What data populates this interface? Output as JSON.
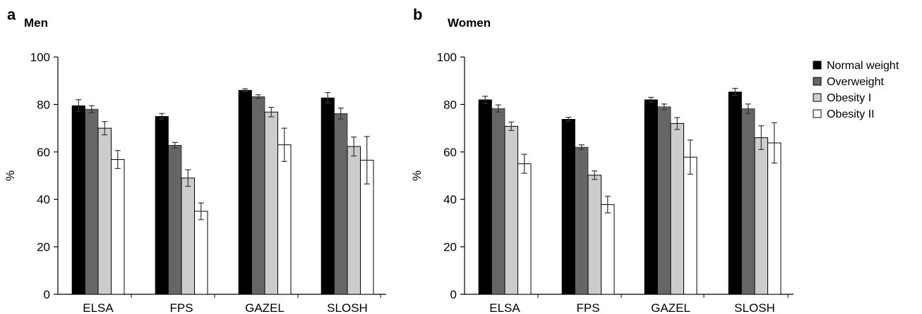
{
  "chart_data": [
    {
      "type": "bar",
      "panel_letter": "a",
      "title": "Men",
      "xlabel": "",
      "ylabel": "%",
      "ylim": [
        0,
        100
      ],
      "yticks": [
        0,
        20,
        40,
        60,
        80,
        100
      ],
      "categories": [
        "ELSA",
        "FPS",
        "GAZEL",
        "SLOSH"
      ],
      "series": [
        {
          "name": "Normal weight",
          "color": "#000000",
          "values": [
            79.5,
            75,
            86,
            82.8
          ],
          "errors": [
            2.5,
            1.2,
            0.6,
            2.2
          ]
        },
        {
          "name": "Overweight",
          "color": "#666666",
          "values": [
            78,
            62.8,
            83.3,
            76.2
          ],
          "errors": [
            1.5,
            1.2,
            0.8,
            2.3
          ]
        },
        {
          "name": "Obesity I",
          "color": "#cccccc",
          "values": [
            70,
            49,
            76.8,
            62.3
          ],
          "errors": [
            2.8,
            3.5,
            2,
            4
          ]
        },
        {
          "name": "Obesity II",
          "color": "#ffffff",
          "values": [
            56.8,
            35,
            63,
            56.5
          ],
          "errors": [
            3.8,
            3.5,
            7,
            10
          ]
        }
      ]
    },
    {
      "type": "bar",
      "panel_letter": "b",
      "title": "Women",
      "xlabel": "",
      "ylabel": "%",
      "ylim": [
        0,
        100
      ],
      "yticks": [
        0,
        20,
        40,
        60,
        80,
        100
      ],
      "categories": [
        "ELSA",
        "FPS",
        "GAZEL",
        "SLOSH"
      ],
      "series": [
        {
          "name": "Normal weight",
          "color": "#000000",
          "values": [
            82,
            73.8,
            82,
            85.3
          ],
          "errors": [
            1.5,
            0.8,
            1,
            1.5
          ]
        },
        {
          "name": "Overweight",
          "color": "#666666",
          "values": [
            78.3,
            62,
            79,
            78.2
          ],
          "errors": [
            1.5,
            1,
            1.2,
            2
          ]
        },
        {
          "name": "Obesity I",
          "color": "#cccccc",
          "values": [
            70.8,
            50.2,
            72,
            66
          ],
          "errors": [
            1.8,
            1.8,
            2.5,
            5
          ]
        },
        {
          "name": "Obesity II",
          "color": "#ffffff",
          "values": [
            55,
            37.8,
            57.8,
            63.8
          ],
          "errors": [
            4,
            3.5,
            7.2,
            8.5
          ]
        }
      ]
    }
  ],
  "legend": {
    "position": "right",
    "items": [
      {
        "label": "Normal weight",
        "color": "#000000"
      },
      {
        "label": "Overweight",
        "color": "#666666"
      },
      {
        "label": "Obesity I",
        "color": "#cccccc"
      },
      {
        "label": "Obesity II",
        "color": "#ffffff"
      }
    ]
  }
}
